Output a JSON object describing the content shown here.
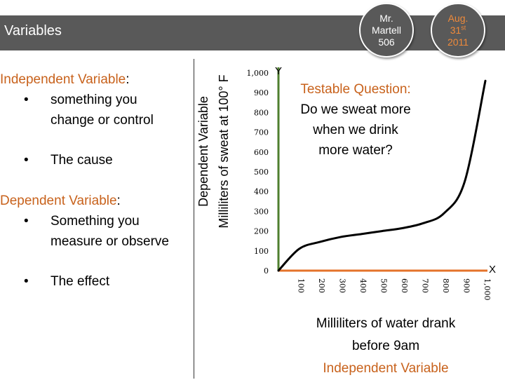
{
  "slide": {
    "title": "Variables",
    "circle1": {
      "line1": "Mr.",
      "line2": "Martell",
      "line3": "506"
    },
    "circle2": {
      "line1": "Aug.",
      "line2_num": "31",
      "line2_sup": "st",
      "line3": "2011"
    },
    "independent": {
      "heading": "Independent Variable",
      "colon": ":",
      "bullets": [
        {
          "line1": "something you",
          "line2": "change or control"
        },
        {
          "line1": "The cause"
        }
      ]
    },
    "dependent": {
      "heading": "Dependent Variable",
      "colon": ":",
      "bullets": [
        {
          "line1": "Something you",
          "line2": "measure or observe"
        },
        {
          "line1": "The effect"
        }
      ]
    },
    "bullet_char": "•",
    "y_axis_caption": {
      "line1": "Dependent Variable",
      "line2": "Milliliters of sweat at 100° F"
    },
    "testable_question": {
      "heading": "Testable Question:",
      "line1": "Do we sweat more",
      "line2": "when we drink",
      "line3": "more water?"
    },
    "x_axis_caption": {
      "line1": "Milliliters of water drank",
      "line2": "before 9am",
      "line3": "Independent Variable"
    }
  },
  "colors": {
    "title_bar": "#595959",
    "accent_orange": "#c8621c",
    "axis_green": "#4f7f2f",
    "axis_orange": "#e4732a"
  },
  "chart_data": {
    "type": "line",
    "y_letter": "Y",
    "x_letter": "X",
    "y_ticks": [
      "1,000",
      "900",
      "800",
      "700",
      "600",
      "500",
      "400",
      "300",
      "200",
      "100",
      "0"
    ],
    "x_ticks": [
      "100",
      "200",
      "300",
      "400",
      "500",
      "600",
      "700",
      "800",
      "900",
      "1,000"
    ],
    "xlim": [
      0,
      1000
    ],
    "ylim": [
      0,
      1000
    ],
    "series": [
      {
        "x": [
          0,
          100,
          200,
          300,
          400,
          500,
          600,
          700,
          800,
          900,
          1000
        ],
        "y": [
          0,
          110,
          145,
          170,
          185,
          200,
          215,
          240,
          290,
          450,
          960
        ]
      }
    ]
  }
}
